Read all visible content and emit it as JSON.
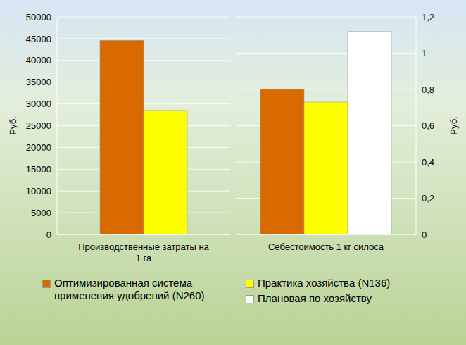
{
  "chart_data": [
    {
      "type": "bar",
      "categories": [
        "Производственные затраты на 1 га"
      ],
      "ylabel": "Руб.",
      "ylim": [
        0,
        50000
      ],
      "yticks": [
        0,
        5000,
        10000,
        15000,
        20000,
        25000,
        30000,
        35000,
        40000,
        45000,
        50000
      ],
      "grid": true,
      "legend": "bottom",
      "series": [
        {
          "name": "Оптимизированная система применения удобрений (N260)",
          "color": "#d96a00",
          "values": [
            44600
          ]
        },
        {
          "name": "Практика хозяйства (N136)",
          "color": "#ffff00",
          "values": [
            28500
          ]
        }
      ]
    },
    {
      "type": "bar",
      "categories": [
        "Себестоимость 1 кг силоса"
      ],
      "ylabel": "Руб.",
      "ylim": [
        0,
        1.2
      ],
      "yticks": [
        0,
        {
          "value": 0.2,
          "label": "0,2"
        },
        {
          "value": 0.4,
          "label": "0,4"
        },
        {
          "value": 0.6,
          "label": "0,6"
        },
        {
          "value": 0.8,
          "label": "0,8"
        },
        1,
        {
          "value": 1.2,
          "label": "1,2"
        }
      ],
      "grid": true,
      "legend": "bottom",
      "series": [
        {
          "name": "Оптимизированная система применения удобрений (N260)",
          "color": "#d96a00",
          "values": [
            0.8
          ]
        },
        {
          "name": "Практика хозяйства (N136)",
          "color": "#ffff00",
          "values": [
            0.73
          ]
        },
        {
          "name": "Плановая по хозяйству",
          "color": "#ffffff",
          "values": [
            1.12
          ]
        }
      ]
    }
  ]
}
